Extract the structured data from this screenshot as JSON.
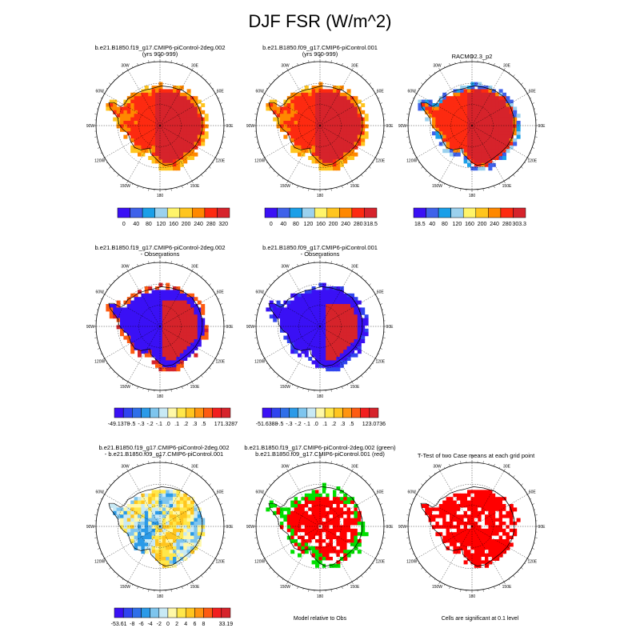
{
  "figure": {
    "title": "DJF FSR (W/m^2)",
    "lon_labels": [
      "0",
      "30E",
      "60E",
      "90E",
      "120E",
      "150E",
      "180",
      "150W",
      "120W",
      "90W",
      "60W",
      "30W"
    ]
  },
  "panels": [
    {
      "title": [
        "b.e21.B1850.f19_g17.CMIP6-piControl-2deg.002",
        "(yrs 900-999)"
      ],
      "fill": "sw_high"
    },
    {
      "title": [
        "b.e21.B1850.f09_g17.CMIP6-piControl.001",
        "(yrs 900-999)"
      ],
      "fill": "sw_high"
    },
    {
      "title": [
        "RACMO2.3_p2"
      ],
      "fill": "sw_obs"
    },
    {
      "title": [
        "b.e21.B1850.f19_g17.CMIP6-piControl-2deg.002",
        "- Observations"
      ],
      "fill": "diff_obs"
    },
    {
      "title": [
        "b.e21.B1850.f09_g17.CMIP6-piControl.001",
        "- Observations"
      ],
      "fill": "diff_obs2"
    },
    {
      "title": [
        "b.e21.B1850.f19_g17.CMIP6-piControl-2deg.002",
        "- b.e21.B1850.f09_g17.CMIP6-piControl.001"
      ],
      "fill": "diff_cases"
    },
    {
      "title": [
        "b.e21.B1850.f19_g17.CMIP6-piControl-2deg.002 (green)",
        "b.e21.B1850.f09_g17.CMIP6-piControl.001 (red)"
      ],
      "fill": "green_red"
    },
    {
      "title": [
        "T-Test of two Case means at each grid point"
      ],
      "fill": "ttest"
    }
  ],
  "colorbars": [
    {
      "colors": [
        "#3a10f5",
        "#3f62ea",
        "#1a9fe8",
        "#9bd1ee",
        "#fff46a",
        "#ffc51f",
        "#ff8800",
        "#fd2a10",
        "#d6232b"
      ],
      "labels": [
        "0",
        "40",
        "80",
        "120",
        "160",
        "200",
        "240",
        "280",
        "320"
      ]
    },
    {
      "colors": [
        "#3a10f5",
        "#3f62ea",
        "#1a9fe8",
        "#9bd1ee",
        "#fff46a",
        "#ffc51f",
        "#ff8800",
        "#fd2a10",
        "#d6232b"
      ],
      "labels": [
        "0",
        "40",
        "80",
        "120",
        "160",
        "200",
        "240",
        "280",
        "318.5"
      ]
    },
    {
      "colors": [
        "#3a10f5",
        "#3f62ea",
        "#1a9fe8",
        "#9bd1ee",
        "#fff46a",
        "#ffc51f",
        "#ff8800",
        "#fd2a10",
        "#d6232b"
      ],
      "labels": [
        "18.5",
        "40",
        "80",
        "120",
        "160",
        "200",
        "240",
        "280",
        "303.3"
      ]
    },
    {
      "colors": [
        "#3a10f5",
        "#3044ef",
        "#2f6fe9",
        "#2b9ae8",
        "#7ec5ee",
        "#c8e9f5",
        "#fff8a8",
        "#ffe74a",
        "#ffc51f",
        "#ff9410",
        "#fd5b12",
        "#f21f1f",
        "#d6232b"
      ],
      "labels": [
        "-49.1378",
        "-.5",
        "-.3",
        "-.2",
        "-.1",
        ".0",
        ".1",
        ".2",
        ".3",
        ".5",
        "171.3287"
      ]
    },
    {
      "colors": [
        "#3a10f5",
        "#3044ef",
        "#2f6fe9",
        "#2b9ae8",
        "#7ec5ee",
        "#c8e9f5",
        "#fff8a8",
        "#ffe74a",
        "#ffc51f",
        "#ff9410",
        "#fd5b12",
        "#f21f1f",
        "#d6232b"
      ],
      "labels": [
        "-51.6388",
        "-.5",
        "-.3",
        "-.2",
        "-.1",
        ".0",
        ".1",
        ".2",
        ".3",
        ".5",
        "123.0736"
      ]
    },
    {
      "colors": [
        "#3a10f5",
        "#3044ef",
        "#2f6fe9",
        "#2b9ae8",
        "#7ec5ee",
        "#c8e9f5",
        "#fff8a8",
        "#ffe74a",
        "#ffc51f",
        "#ff9410",
        "#fd5b12",
        "#f21f1f",
        "#d6232b"
      ],
      "labels": [
        "-53.61",
        "-8",
        "-6",
        "-4",
        "-2",
        "0",
        "2",
        "4",
        "6",
        "8",
        "33.19"
      ]
    }
  ],
  "notes": {
    "model_relative": "Model relative to Obs",
    "cells_significant": "Cells are significant at 0.1 level"
  },
  "chart_data": [
    {
      "type": "heatmap",
      "title": "b.e21.B1850.f19_g17.CMIP6-piControl-2deg.002 (yrs 900-999)",
      "colorbar_levels": [
        0,
        40,
        80,
        120,
        160,
        200,
        240,
        280,
        320
      ]
    },
    {
      "type": "heatmap",
      "title": "b.e21.B1850.f09_g17.CMIP6-piControl.001 (yrs 900-999)",
      "colorbar_levels": [
        0,
        40,
        80,
        120,
        160,
        200,
        240,
        280,
        318.5
      ]
    },
    {
      "type": "heatmap",
      "title": "RACMO2.3_p2",
      "colorbar_levels": [
        18.5,
        40,
        80,
        120,
        160,
        200,
        240,
        280,
        303.3
      ]
    },
    {
      "type": "heatmap",
      "title": "b.e21.B1850.f19_g17.CMIP6-piControl-2deg.002 - Observations",
      "colorbar_levels": [
        -49.1378,
        -0.5,
        -0.3,
        -0.2,
        -0.1,
        0.0,
        0.1,
        0.2,
        0.3,
        0.5,
        171.3287
      ]
    },
    {
      "type": "heatmap",
      "title": "b.e21.B1850.f09_g17.CMIP6-piControl.001 - Observations",
      "colorbar_levels": [
        -51.6388,
        -0.5,
        -0.3,
        -0.2,
        -0.1,
        0.0,
        0.1,
        0.2,
        0.3,
        0.5,
        123.0736
      ]
    },
    {
      "type": "heatmap",
      "title": "b.e21.B1850.f19_g17.CMIP6-piControl-2deg.002 - b.e21.B1850.f09_g17.CMIP6-piControl.001",
      "colorbar_levels": [
        -53.61,
        -8,
        -6,
        -4,
        -2,
        0,
        2,
        4,
        6,
        8,
        33.19
      ]
    },
    {
      "type": "heatmap",
      "title": "b.e21.B1850.f19_g17.CMIP6-piControl-2deg.002 (green) b.e21.B1850.f09_g17.CMIP6-piControl.001 (red)",
      "note": "Model relative to Obs"
    },
    {
      "type": "heatmap",
      "title": "T-Test of two Case means at each grid point",
      "note": "Cells are significant at 0.1 level"
    }
  ]
}
